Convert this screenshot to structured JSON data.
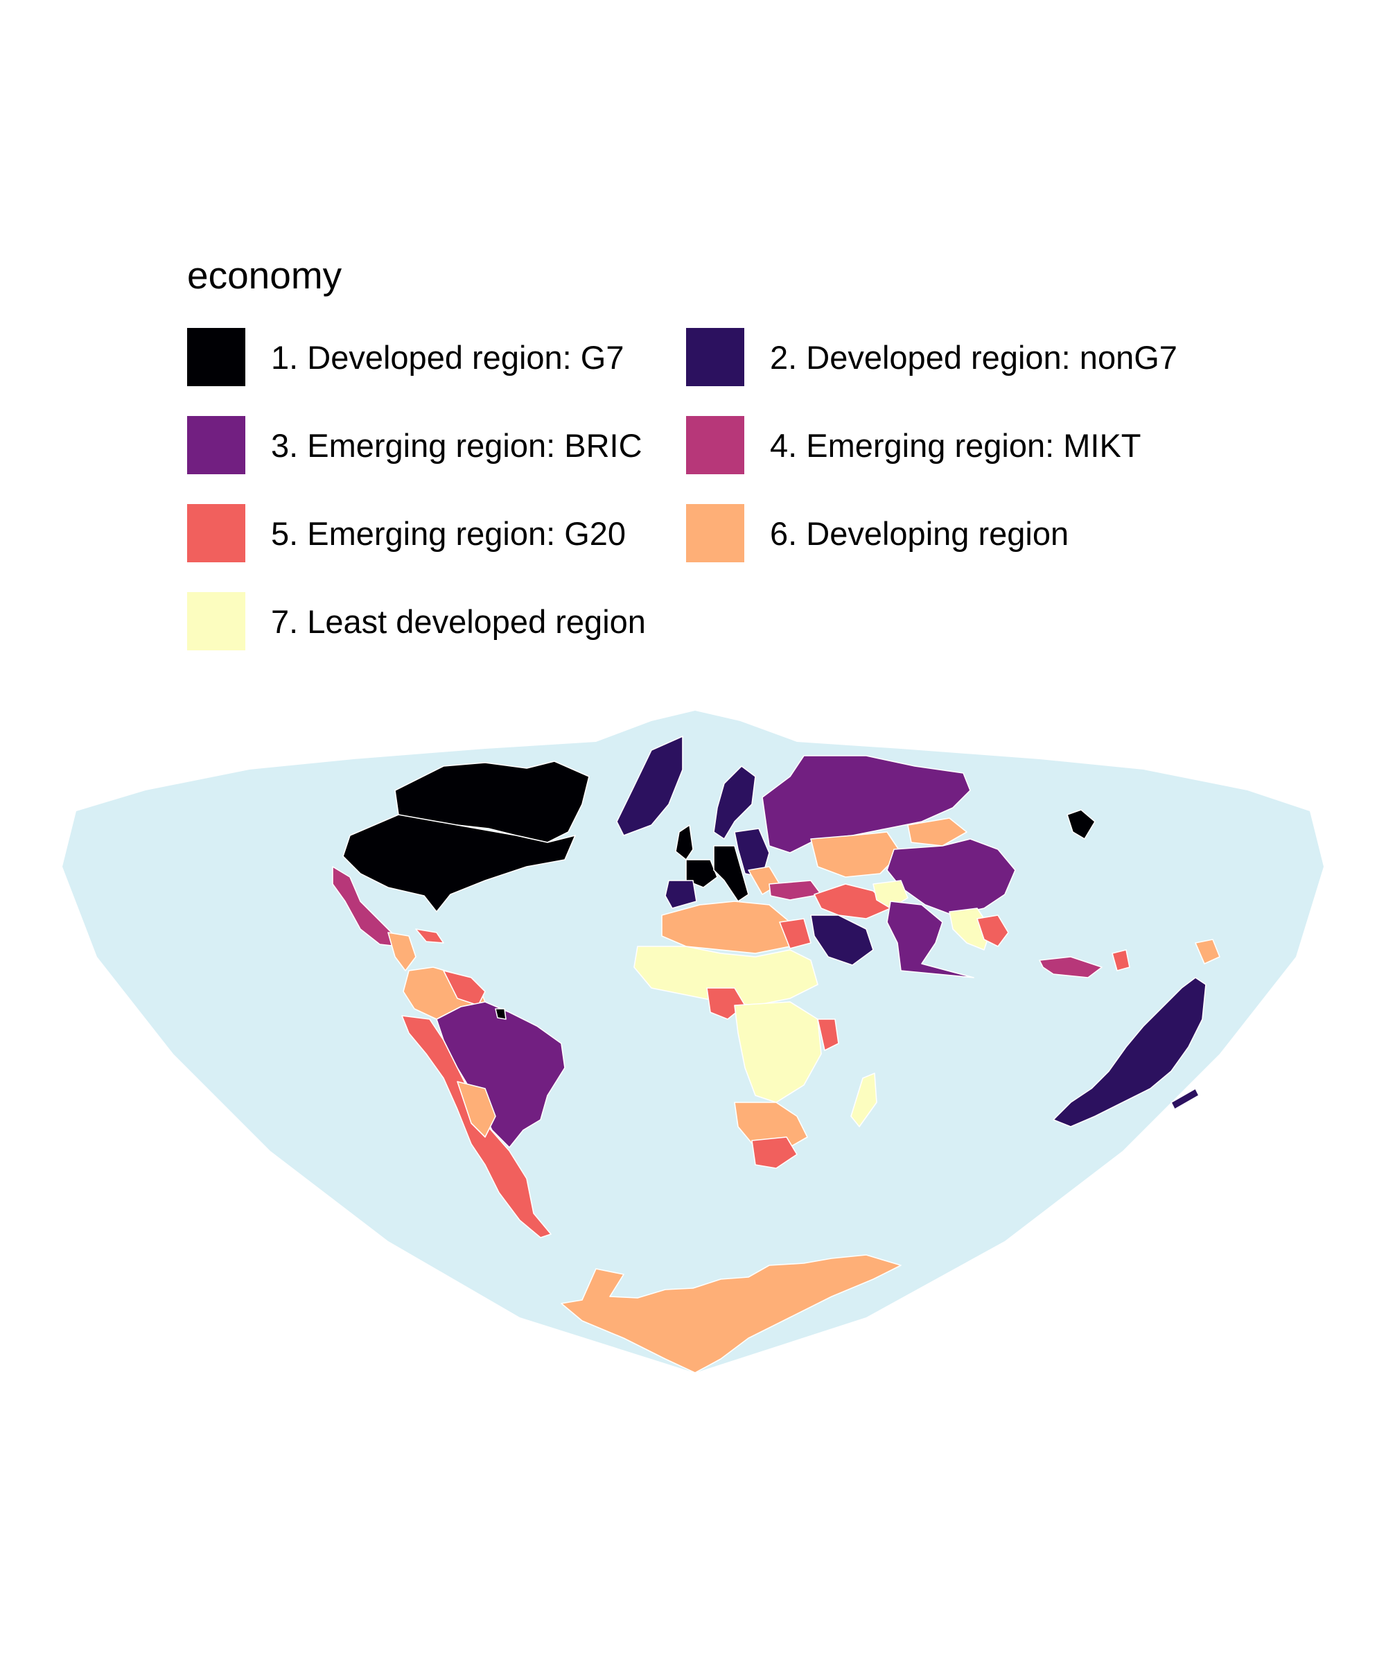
{
  "legend": {
    "title": "economy",
    "items": [
      {
        "label": "1. Developed region: G7",
        "color": "#000004"
      },
      {
        "label": "2. Developed region: nonG7",
        "color": "#2C115F"
      },
      {
        "label": "3. Emerging region: BRIC",
        "color": "#721F81"
      },
      {
        "label": "4. Emerging region: MIKT",
        "color": "#B73779"
      },
      {
        "label": "5. Emerging region: G20",
        "color": "#F1605D"
      },
      {
        "label": "6. Developing region",
        "color": "#FEAF77"
      },
      {
        "label": "7. Least developed region",
        "color": "#FCFDBF"
      }
    ]
  },
  "map": {
    "ocean_color": "#D8EFF5",
    "border_color": "#FFFFFF",
    "projection": "interrupted-bowl"
  }
}
